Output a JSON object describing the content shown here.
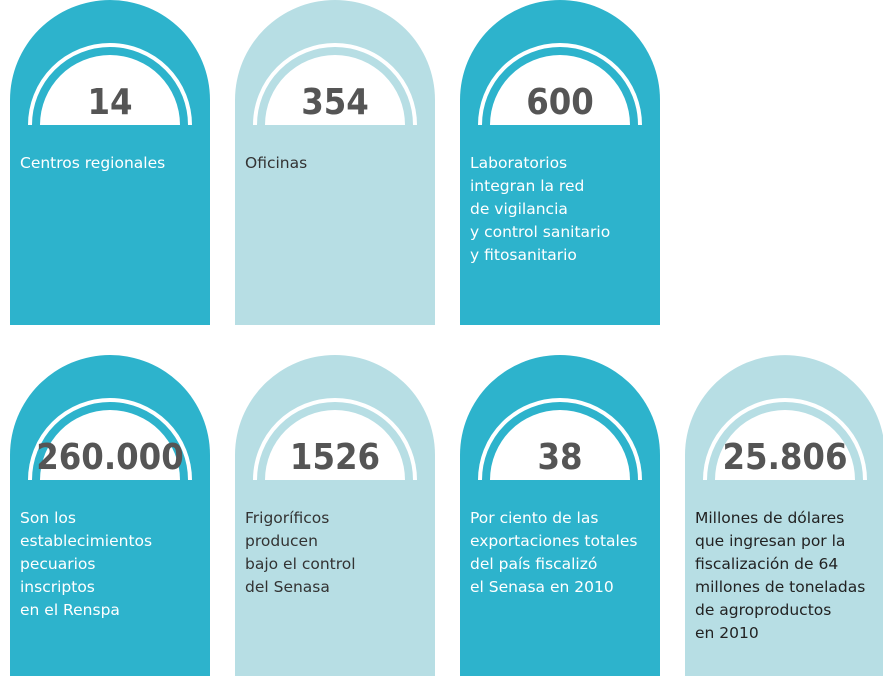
{
  "cards": [
    {
      "number": "14",
      "color": "#2db3cc",
      "text_color": "#ffffff",
      "lines": [
        "Centros regionales"
      ]
    },
    {
      "number": "354",
      "color": "#b7dee4",
      "text_color": "#333333",
      "lines": [
        "Oficinas"
      ]
    },
    {
      "number": "600",
      "color": "#2db3cc",
      "text_color": "#ffffff",
      "lines": [
        "Laboratorios",
        "integran la red",
        "de vigilancia",
        "y control sanitario",
        "y fitosanitario"
      ]
    },
    {
      "number": "260.000",
      "color": "#2db3cc",
      "text_color": "#ffffff",
      "lines": [
        "Son los",
        "establecimientos",
        "pecuarios",
        "inscriptos",
        "en el Renspa"
      ]
    },
    {
      "number": "1526",
      "color": "#b7dee4",
      "text_color": "#333333",
      "lines": [
        "Frigoríficos",
        "producen",
        "bajo el control",
        "del Senasa"
      ]
    },
    {
      "number": "38",
      "color": "#2db3cc",
      "text_color": "#ffffff",
      "lines": [
        "Por ciento de las",
        "exportaciones totales",
        "del país fiscalizó",
        "el Senasa en 2010"
      ]
    },
    {
      "number": "25.806",
      "color": "#b7dee4",
      "text_color": "#222222",
      "lines": [
        "Millones de dólares",
        "que ingresan por la",
        "fiscalización de 64",
        "millones de toneladas",
        "de agroproductos",
        "en 2010"
      ]
    }
  ]
}
